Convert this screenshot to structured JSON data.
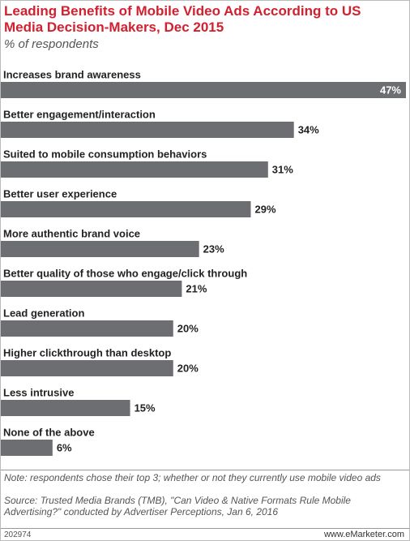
{
  "chart_data": {
    "type": "hbar",
    "title": "Leading Benefits of Mobile Video Ads According to US Media Decision-Makers, Dec 2015",
    "subtitle": "% of respondents",
    "categories": [
      "Increases brand awareness",
      "Better engagement/interaction",
      "Suited to mobile consumption behaviors",
      "Better user experience",
      "More authentic brand voice",
      "Better quality of those who engage/click through",
      "Lead generation",
      "Higher clickthrough than desktop",
      "Less intrusive",
      "None of the above"
    ],
    "values": [
      47,
      34,
      31,
      29,
      23,
      21,
      20,
      20,
      15,
      6
    ],
    "value_labels": [
      "47%",
      "34%",
      "31%",
      "29%",
      "23%",
      "21%",
      "20%",
      "20%",
      "15%",
      "6%"
    ],
    "color": "#6d6e71",
    "note": "Note: respondents chose their top 3; whether or not they currently use mobile video ads",
    "source": "Source: Trusted Media Brands (TMB), \"Can Video & Native Formats Rule Mobile Advertising?\" conducted by Advertiser Perceptions, Jan 6, 2016",
    "chart_id": "202974",
    "site": "www.eMarketer.com"
  }
}
